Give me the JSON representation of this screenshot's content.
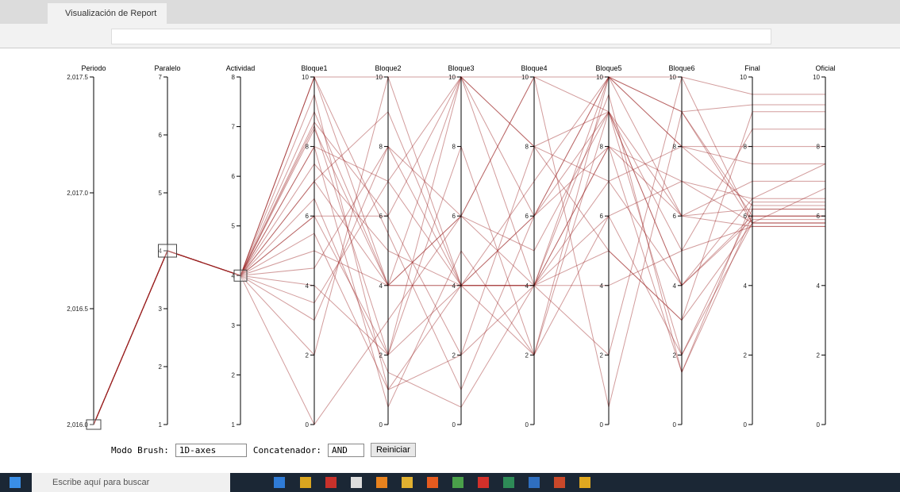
{
  "browser": {
    "tab_title": "Visualización de Report"
  },
  "chart_data": {
    "type": "parallel",
    "color": "#9b2323",
    "dimensions": [
      {
        "name": "Periodo",
        "ylim": [
          2016,
          2017.5
        ],
        "yticks": [
          {
            "value": 2016,
            "label": "2,016.0"
          },
          {
            "value": 2016.5,
            "label": "2,016.5"
          },
          {
            "value": 2017,
            "label": "2,017.0"
          },
          {
            "value": 2017.5,
            "label": "2,017.5"
          }
        ]
      },
      {
        "name": "Paralelo",
        "ylim": [
          1,
          7
        ],
        "yticks": [
          1,
          2,
          3,
          4,
          5,
          6,
          7
        ]
      },
      {
        "name": "Actividad",
        "ylim": [
          1,
          8
        ],
        "yticks": [
          1,
          2,
          3,
          4,
          5,
          6,
          7,
          8
        ]
      },
      {
        "name": "Bloque1",
        "ylim": [
          0,
          10
        ],
        "yticks": [
          0,
          2,
          4,
          6,
          8,
          10
        ]
      },
      {
        "name": "Bloque2",
        "ylim": [
          0,
          10
        ],
        "yticks": [
          0,
          2,
          4,
          6,
          8,
          10
        ]
      },
      {
        "name": "Bloque3",
        "ylim": [
          0,
          10
        ],
        "yticks": [
          0,
          2,
          4,
          6,
          8,
          10
        ]
      },
      {
        "name": "Bloque4",
        "ylim": [
          0,
          10
        ],
        "yticks": [
          0,
          2,
          4,
          6,
          8,
          10
        ]
      },
      {
        "name": "Bloque5",
        "ylim": [
          0,
          10
        ],
        "yticks": [
          0,
          2,
          4,
          6,
          8,
          10
        ]
      },
      {
        "name": "Bloque6",
        "ylim": [
          0,
          10
        ],
        "yticks": [
          0,
          2,
          4,
          6,
          8,
          10
        ]
      },
      {
        "name": "Final",
        "ylim": [
          0,
          10
        ],
        "yticks": [
          0,
          2,
          4,
          6,
          8,
          10
        ]
      },
      {
        "name": "Oficial",
        "ylim": [
          0,
          10
        ],
        "yticks": [
          0,
          2,
          4,
          6,
          8,
          10
        ]
      }
    ],
    "records": [
      [
        2016,
        4,
        4,
        10,
        10,
        10,
        10,
        10,
        10,
        9.5,
        9.5
      ],
      [
        2016,
        4,
        4,
        8.5,
        4,
        4,
        4,
        8,
        6,
        5.7,
        5.7
      ],
      [
        2016,
        4,
        4,
        6,
        2,
        10,
        8,
        9,
        4,
        6,
        6
      ],
      [
        2016,
        4,
        4,
        5.5,
        1,
        4,
        6,
        10,
        8,
        8,
        8
      ],
      [
        2016,
        4,
        4,
        8,
        7,
        4,
        4,
        5,
        3,
        5.8,
        5.8
      ],
      [
        2016,
        4,
        4,
        9,
        4,
        6,
        10,
        9,
        2,
        6.2,
        6.2
      ],
      [
        2016,
        4,
        4,
        4,
        2,
        8,
        2,
        9,
        6,
        7,
        7
      ],
      [
        2016,
        4,
        4,
        7,
        9,
        4,
        4,
        4,
        5,
        5.7,
        5.7
      ],
      [
        2016,
        4,
        4,
        10,
        5.5,
        1,
        6,
        8,
        1.5,
        6.4,
        6.4
      ],
      [
        2016,
        4,
        4,
        3,
        8,
        4,
        6,
        10,
        9,
        5.8,
        5.8
      ],
      [
        2016,
        4,
        4,
        6.5,
        1.5,
        0.5,
        4,
        6,
        7,
        6.5,
        6.5
      ],
      [
        2016,
        4,
        4,
        8.7,
        6,
        10,
        8,
        5,
        3,
        9,
        9
      ],
      [
        2016,
        4,
        4,
        2,
        10,
        4,
        4,
        2,
        10,
        5.8,
        5.8
      ],
      [
        2016,
        4,
        4,
        5,
        4,
        4,
        2,
        10,
        8,
        6.3,
        6.3
      ],
      [
        2016,
        4,
        4,
        9.5,
        1,
        2,
        8,
        7,
        4,
        6.5,
        7.5
      ],
      [
        2016,
        4,
        4,
        7,
        4,
        10,
        6,
        9,
        5,
        8.5,
        8.5
      ],
      [
        2016,
        4,
        4,
        0,
        3,
        6,
        4,
        10,
        9,
        6,
        6
      ],
      [
        2016,
        4,
        4,
        8,
        0.5,
        5,
        2,
        6,
        2,
        5.8,
        5.8
      ],
      [
        2016,
        4,
        4,
        6,
        6,
        2,
        4,
        8,
        7,
        5.8,
        6.8
      ],
      [
        2016,
        4,
        4,
        4.5,
        8,
        6,
        10,
        0.5,
        9,
        9.2,
        9.2
      ],
      [
        2016,
        4,
        4,
        10,
        4,
        6,
        5,
        9,
        4,
        5.9,
        5.9
      ],
      [
        2016,
        4,
        4,
        8.6,
        2,
        4,
        7,
        10,
        6,
        6.2,
        6.2
      ],
      [
        2016,
        4,
        4,
        3.5,
        7,
        10,
        4,
        7,
        8,
        7.5,
        7.5
      ],
      [
        2016,
        4,
        4,
        7.5,
        5,
        4,
        4,
        9.5,
        1.5,
        6,
        6
      ]
    ]
  },
  "controls": {
    "brush_label": "Modo Brush:",
    "brush_option": "1D-axes",
    "concat_label": "Concatenador:",
    "concat_option": "AND",
    "reset_button": "Reiniciar"
  },
  "taskbar": {
    "search_placeholder": "Escribe aquí para buscar"
  }
}
